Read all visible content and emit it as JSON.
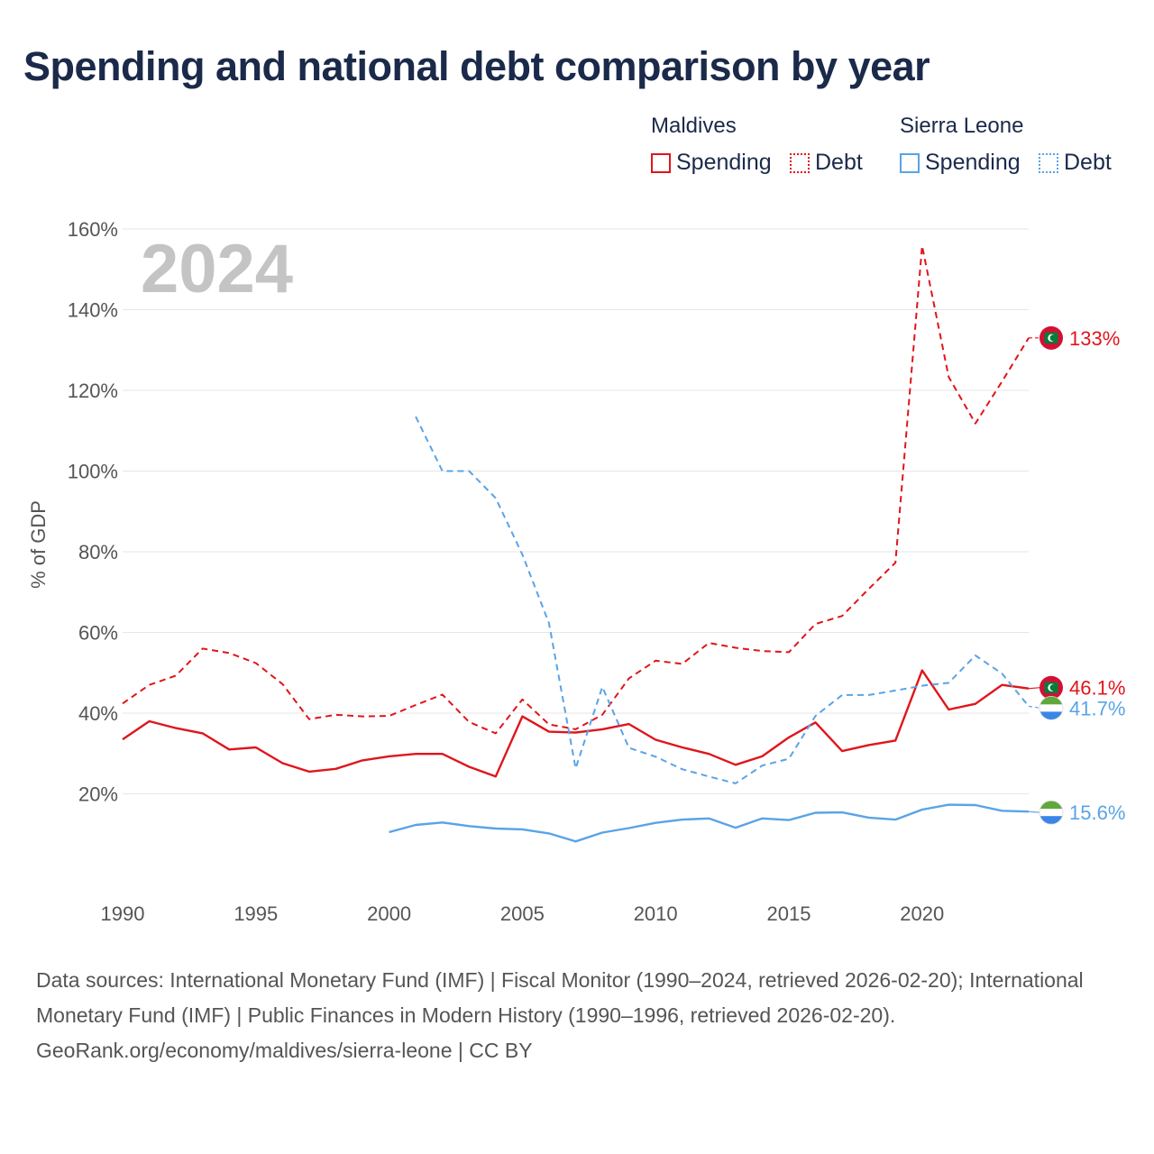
{
  "title": "Spending and national debt comparison by year",
  "legend": {
    "groups": [
      {
        "name": "Maldives",
        "items": [
          {
            "label": "Spending",
            "style": "solid"
          },
          {
            "label": "Debt",
            "style": "dashed"
          }
        ],
        "color": "#e0151b"
      },
      {
        "name": "Sierra Leone",
        "items": [
          {
            "label": "Spending",
            "style": "solid"
          },
          {
            "label": "Debt",
            "style": "dashed"
          }
        ],
        "color": "#5aa3e6"
      }
    ]
  },
  "colors": {
    "maldives": "#e0151b",
    "sierra_leone": "#5aa3e6",
    "grid": "#e6e6e6",
    "axis_text": "#555555"
  },
  "chart_data": {
    "type": "line",
    "year_watermark": "2024",
    "ylabel": "% of GDP",
    "xlabel": "",
    "xlim": [
      1990,
      2024
    ],
    "ylim": [
      0,
      160
    ],
    "xticks": [
      1990,
      1995,
      2000,
      2005,
      2010,
      2015,
      2020
    ],
    "yticks": [
      20,
      40,
      60,
      80,
      100,
      120,
      140,
      160
    ],
    "ytick_labels": [
      "20%",
      "40%",
      "60%",
      "80%",
      "100%",
      "120%",
      "140%",
      "160%"
    ],
    "series": [
      {
        "name": "Maldives Spending",
        "country": "maldives",
        "dash": false,
        "x": [
          1990,
          1991,
          1992,
          1993,
          1994,
          1995,
          1996,
          1997,
          1998,
          1999,
          2000,
          2001,
          2002,
          2003,
          2004,
          2005,
          2006,
          2007,
          2008,
          2009,
          2010,
          2011,
          2012,
          2013,
          2014,
          2015,
          2016,
          2017,
          2018,
          2019,
          2020,
          2021,
          2022,
          2023,
          2024
        ],
        "values": [
          33.5,
          38,
          36.3,
          35,
          31,
          31.5,
          27.6,
          25.5,
          26.2,
          28.3,
          29.3,
          29.9,
          29.9,
          26.7,
          24.3,
          39.2,
          35.4,
          35.2,
          36,
          37.3,
          33.4,
          31.5,
          29.9,
          27.2,
          29.3,
          34,
          37.7,
          30.6,
          32.1,
          33.2,
          50.6,
          40.9,
          42.3,
          47,
          46.1
        ],
        "end_label": "46.1%"
      },
      {
        "name": "Maldives Debt",
        "country": "maldives",
        "dash": true,
        "x": [
          1990,
          1991,
          1992,
          1993,
          1994,
          1995,
          1996,
          1997,
          1998,
          1999,
          2000,
          2001,
          2002,
          2003,
          2004,
          2005,
          2006,
          2007,
          2008,
          2009,
          2010,
          2011,
          2012,
          2013,
          2014,
          2015,
          2016,
          2017,
          2018,
          2019,
          2020,
          2021,
          2022,
          2023,
          2024
        ],
        "values": [
          42.4,
          47,
          49.3,
          56,
          54.9,
          52.4,
          47.2,
          38.5,
          39.6,
          39.2,
          39.3,
          42,
          44.6,
          37.8,
          35,
          43.4,
          37.2,
          36,
          39.6,
          48.6,
          53,
          52.2,
          57.4,
          56.2,
          55.4,
          55.1,
          62.1,
          64.1,
          70.8,
          77.3,
          155.8,
          123.3,
          111.8,
          122.2,
          133
        ],
        "end_label": "133%"
      },
      {
        "name": "Sierra Leone Spending",
        "country": "sierra_leone",
        "dash": false,
        "x": [
          2000,
          2001,
          2002,
          2003,
          2004,
          2005,
          2006,
          2007,
          2008,
          2009,
          2010,
          2011,
          2012,
          2013,
          2014,
          2015,
          2016,
          2017,
          2018,
          2019,
          2020,
          2021,
          2022,
          2023,
          2024
        ],
        "values": [
          10.5,
          12.3,
          12.9,
          12,
          11.4,
          11.2,
          10.2,
          8.2,
          10.4,
          11.5,
          12.8,
          13.6,
          13.9,
          11.6,
          13.9,
          13.5,
          15.3,
          15.4,
          14.1,
          13.6,
          16.1,
          17.3,
          17.2,
          15.8,
          15.6
        ],
        "end_label": "15.6%"
      },
      {
        "name": "Sierra Leone Debt",
        "country": "sierra_leone",
        "dash": true,
        "x": [
          2001,
          2002,
          2003,
          2004,
          2005,
          2006,
          2007,
          2008,
          2009,
          2010,
          2011,
          2012,
          2013,
          2014,
          2015,
          2016,
          2017,
          2018,
          2019,
          2020,
          2021,
          2022,
          2023,
          2024
        ],
        "values": [
          113.5,
          100,
          100,
          93.3,
          79.3,
          62.3,
          26.3,
          46.5,
          31.4,
          29.2,
          26.1,
          24.3,
          22.6,
          27,
          28.7,
          39.3,
          44.5,
          44.5,
          45.6,
          46.8,
          47.5,
          54.3,
          49.8,
          41.7
        ],
        "end_label": "41.7%"
      }
    ]
  },
  "sources": {
    "line1": "Data sources: International Monetary Fund (IMF) | Fiscal Monitor (1990–2024, retrieved 2026-02-20); International Monetary Fund (IMF) | Public Finances in Modern History (1990–1996, retrieved 2026-02-20).",
    "line2": "GeoRank.org/economy/maldives/sierra-leone | CC BY"
  }
}
